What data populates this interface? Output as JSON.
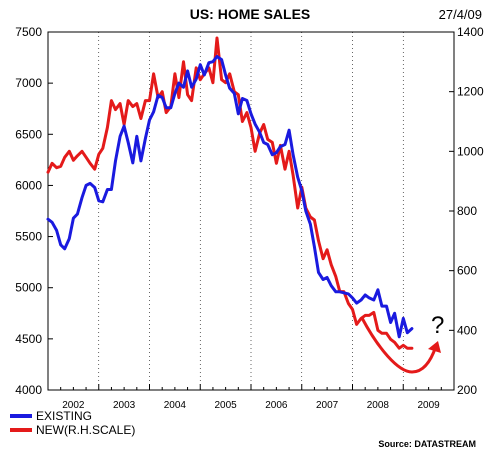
{
  "title": "US: HOME SALES",
  "date": "27/4/09",
  "source": "Source: DATASTREAM",
  "colors": {
    "existing": "#1a1adf",
    "new": "#e41a1a",
    "background": "#ffffff"
  },
  "legend": [
    {
      "key": "existing",
      "label": "EXISTING"
    },
    {
      "key": "new",
      "label": "NEW(R.H.SCALE)"
    }
  ],
  "annotation": {
    "mark": "?",
    "arrow": "curved red arrow pointing up-right",
    "color": "#e41a1a"
  },
  "chart_data": {
    "type": "line",
    "title": "US: HOME SALES",
    "x_range": [
      2002,
      2010
    ],
    "x_tick_labels": [
      "2002",
      "2003",
      "2004",
      "2005",
      "2006",
      "2007",
      "2008",
      "2009"
    ],
    "left_axis": {
      "ylim": [
        4000,
        7500
      ],
      "ticks": [
        4000,
        4500,
        5000,
        5500,
        6000,
        6500,
        7000,
        7500
      ],
      "labels": [
        "4000",
        "4500",
        "5000",
        "5500",
        "6000",
        "6500",
        "7000",
        "7500"
      ]
    },
    "right_axis": {
      "ylim": [
        200,
        1400
      ],
      "ticks": [
        200,
        400,
        600,
        800,
        1000,
        1200,
        1400
      ],
      "labels": [
        "200",
        "400",
        "600",
        "800",
        "1000",
        "1200",
        "1400"
      ]
    },
    "grid": "vertical dashed lines at year boundaries",
    "legend_position": "bottom-left",
    "series": [
      {
        "name": "EXISTING",
        "axis": "left",
        "x": [
          2002.0,
          2002.08,
          2002.17,
          2002.25,
          2002.33,
          2002.42,
          2002.5,
          2002.58,
          2002.67,
          2002.75,
          2002.83,
          2002.92,
          2003.0,
          2003.08,
          2003.17,
          2003.25,
          2003.33,
          2003.42,
          2003.5,
          2003.58,
          2003.67,
          2003.75,
          2003.83,
          2003.92,
          2004.0,
          2004.08,
          2004.17,
          2004.25,
          2004.33,
          2004.42,
          2004.5,
          2004.58,
          2004.67,
          2004.75,
          2004.83,
          2004.92,
          2005.0,
          2005.08,
          2005.17,
          2005.25,
          2005.33,
          2005.42,
          2005.5,
          2005.58,
          2005.67,
          2005.75,
          2005.83,
          2005.92,
          2006.0,
          2006.08,
          2006.17,
          2006.25,
          2006.33,
          2006.42,
          2006.5,
          2006.58,
          2006.67,
          2006.75,
          2006.83,
          2006.92,
          2007.0,
          2007.08,
          2007.17,
          2007.25,
          2007.33,
          2007.42,
          2007.5,
          2007.58,
          2007.67,
          2007.75,
          2007.83,
          2007.92,
          2008.0,
          2008.08,
          2008.17,
          2008.25,
          2008.33,
          2008.42,
          2008.5,
          2008.58,
          2008.67,
          2008.75,
          2008.83,
          2008.92,
          2009.0,
          2009.08,
          2009.17
        ],
        "y": [
          5670,
          5640,
          5560,
          5420,
          5380,
          5480,
          5680,
          5720,
          5880,
          6000,
          6020,
          5980,
          5850,
          5840,
          5960,
          5960,
          6240,
          6480,
          6580,
          6420,
          6220,
          6480,
          6240,
          6460,
          6640,
          6720,
          6880,
          6860,
          6760,
          6760,
          6900,
          7000,
          6960,
          7120,
          6960,
          7040,
          7180,
          7080,
          7200,
          7210,
          7260,
          7230,
          7080,
          6950,
          6900,
          6700,
          6850,
          6830,
          6700,
          6600,
          6520,
          6420,
          6400,
          6300,
          6320,
          6380,
          6400,
          6540,
          6300,
          6080,
          5950,
          5750,
          5620,
          5400,
          5150,
          5080,
          5100,
          5020,
          4960,
          4960,
          4950,
          4940,
          4900,
          4850,
          4880,
          4930,
          4900,
          4880,
          4980,
          4820,
          4820,
          4660,
          4750,
          4520,
          4700,
          4560,
          4600
        ]
      },
      {
        "name": "NEW(R.H.SCALE)",
        "axis": "right",
        "x": [
          2002.0,
          2002.08,
          2002.17,
          2002.25,
          2002.33,
          2002.42,
          2002.5,
          2002.58,
          2002.67,
          2002.75,
          2002.83,
          2002.92,
          2003.0,
          2003.08,
          2003.17,
          2003.25,
          2003.33,
          2003.42,
          2003.5,
          2003.58,
          2003.67,
          2003.75,
          2003.83,
          2003.92,
          2004.0,
          2004.08,
          2004.17,
          2004.25,
          2004.33,
          2004.42,
          2004.5,
          2004.58,
          2004.67,
          2004.75,
          2004.83,
          2004.92,
          2005.0,
          2005.08,
          2005.17,
          2005.25,
          2005.33,
          2005.42,
          2005.5,
          2005.58,
          2005.67,
          2005.75,
          2005.83,
          2005.92,
          2006.0,
          2006.08,
          2006.17,
          2006.25,
          2006.33,
          2006.42,
          2006.5,
          2006.58,
          2006.67,
          2006.75,
          2006.83,
          2006.92,
          2007.0,
          2007.08,
          2007.17,
          2007.25,
          2007.33,
          2007.42,
          2007.5,
          2007.58,
          2007.67,
          2007.75,
          2007.83,
          2007.92,
          2008.0,
          2008.08,
          2008.17,
          2008.25,
          2008.33,
          2008.42,
          2008.5,
          2008.58,
          2008.67,
          2008.75,
          2008.83,
          2008.92,
          2009.0,
          2009.08,
          2009.17
        ],
        "y": [
          930,
          960,
          945,
          950,
          980,
          1000,
          970,
          985,
          1000,
          980,
          960,
          940,
          990,
          1010,
          1080,
          1170,
          1140,
          1160,
          1090,
          1170,
          1150,
          1160,
          1110,
          1170,
          1170,
          1260,
          1180,
          1200,
          1130,
          1150,
          1260,
          1180,
          1300,
          1190,
          1170,
          1280,
          1240,
          1260,
          1280,
          1230,
          1380,
          1240,
          1230,
          1260,
          1200,
          1190,
          1100,
          1130,
          1080,
          1000,
          1060,
          1090,
          1040,
          1030,
          960,
          1020,
          940,
          1000,
          920,
          810,
          880,
          810,
          780,
          770,
          700,
          640,
          670,
          620,
          580,
          530,
          530,
          490,
          470,
          420,
          440,
          450,
          450,
          460,
          400,
          390,
          390,
          370,
          360,
          340,
          350,
          340,
          340
        ]
      }
    ]
  }
}
